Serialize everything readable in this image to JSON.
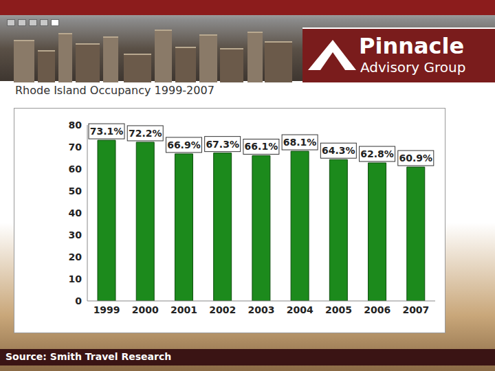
{
  "chart_data": {
    "type": "bar",
    "title": "Rhode Island Occupancy 1999-2007",
    "categories": [
      "1999",
      "2000",
      "2001",
      "2002",
      "2003",
      "2004",
      "2005",
      "2006",
      "2007"
    ],
    "values": [
      73.1,
      72.2,
      66.9,
      67.3,
      66.1,
      68.1,
      64.3,
      62.8,
      60.9
    ],
    "value_labels": [
      "73.1%",
      "72.2%",
      "66.9%",
      "67.3%",
      "66.1%",
      "68.1%",
      "64.3%",
      "62.8%",
      "60.9%"
    ],
    "data_labels": true,
    "color": "#1c8a1c",
    "ylim": [
      0,
      80
    ],
    "yticks": [
      0,
      10,
      20,
      30,
      40,
      50,
      60,
      70,
      80
    ],
    "grid": false
  },
  "header": {
    "brand": "Pinnacle",
    "tagline": "Advisory Group"
  },
  "footer": {
    "source": "Source: Smith Travel Research"
  }
}
